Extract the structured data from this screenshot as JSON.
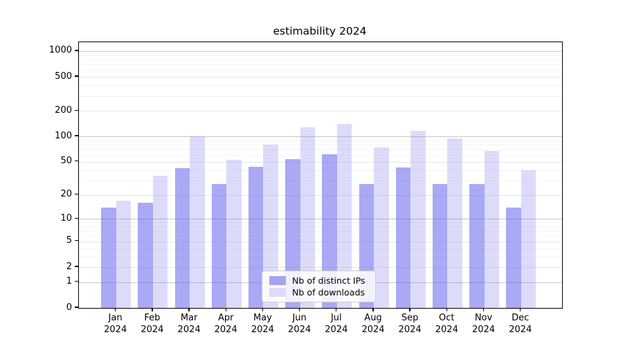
{
  "chart_data": {
    "type": "bar",
    "title": "estimability 2024",
    "categories": [
      "Jan",
      "Feb",
      "Mar",
      "Apr",
      "May",
      "Jun",
      "Jul",
      "Aug",
      "Sep",
      "Oct",
      "Nov",
      "Dec"
    ],
    "x_year_label": "2024",
    "series": [
      {
        "name": "Nb of distinct IPs",
        "color": "rgba(99,99,237,0.55)",
        "legend_color": "#a4a4f0",
        "values": [
          14,
          16,
          42,
          27,
          44,
          54,
          61,
          27,
          43,
          27,
          27,
          14
        ]
      },
      {
        "name": "Nb of downloads",
        "color": "rgba(130,130,238,0.28)",
        "legend_color": "#dcdcf8",
        "values": [
          17,
          34,
          101,
          53,
          80,
          128,
          141,
          74,
          116,
          94,
          67,
          40
        ]
      }
    ],
    "y_ticks": [
      0,
      1,
      2,
      5,
      10,
      20,
      50,
      100,
      200,
      500,
      1000
    ],
    "y_scale": "log10(1+v)",
    "ylim": [
      0,
      1250
    ],
    "grid": true,
    "legend_position": "lower center"
  }
}
